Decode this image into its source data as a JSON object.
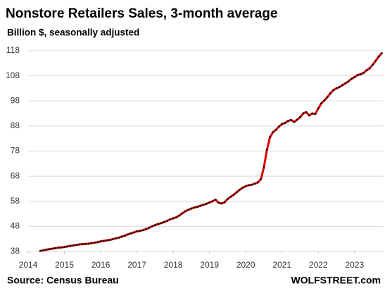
{
  "chart_data": {
    "type": "line",
    "title": "Nonstore Retailers Sales, 3-month average",
    "subtitle": "Billion $, seasonally adjusted",
    "source": "Source: Census Bureau",
    "watermark": "WOLFSTREET.com",
    "xlim": [
      2014,
      2023.8
    ],
    "xticks": [
      2014,
      2015,
      2016,
      2017,
      2018,
      2019,
      2020,
      2021,
      2022,
      2023
    ],
    "ylim": [
      38,
      118
    ],
    "yticks": [
      38,
      48,
      58,
      68,
      78,
      88,
      98,
      108,
      118
    ],
    "grid": true,
    "x": [
      2014.333,
      2014.417,
      2014.5,
      2014.583,
      2014.667,
      2014.75,
      2014.833,
      2014.917,
      2015.0,
      2015.083,
      2015.167,
      2015.25,
      2015.333,
      2015.417,
      2015.5,
      2015.583,
      2015.667,
      2015.75,
      2015.833,
      2015.917,
      2016.0,
      2016.083,
      2016.167,
      2016.25,
      2016.333,
      2016.417,
      2016.5,
      2016.583,
      2016.667,
      2016.75,
      2016.833,
      2016.917,
      2017.0,
      2017.083,
      2017.167,
      2017.25,
      2017.333,
      2017.417,
      2017.5,
      2017.583,
      2017.667,
      2017.75,
      2017.833,
      2017.917,
      2018.0,
      2018.083,
      2018.167,
      2018.25,
      2018.333,
      2018.417,
      2018.5,
      2018.583,
      2018.667,
      2018.75,
      2018.833,
      2018.917,
      2019.0,
      2019.083,
      2019.167,
      2019.25,
      2019.333,
      2019.417,
      2019.5,
      2019.583,
      2019.667,
      2019.75,
      2019.833,
      2019.917,
      2020.0,
      2020.083,
      2020.167,
      2020.25,
      2020.333,
      2020.417,
      2020.5,
      2020.583,
      2020.667,
      2020.75,
      2020.833,
      2020.917,
      2021.0,
      2021.083,
      2021.167,
      2021.25,
      2021.333,
      2021.417,
      2021.5,
      2021.583,
      2021.667,
      2021.75,
      2021.833,
      2021.917,
      2022.0,
      2022.083,
      2022.167,
      2022.25,
      2022.333,
      2022.417,
      2022.5,
      2022.583,
      2022.667,
      2022.75,
      2022.833,
      2022.917,
      2023.0,
      2023.083,
      2023.167,
      2023.25,
      2023.333,
      2023.417,
      2023.5,
      2023.583,
      2023.667,
      2023.75
    ],
    "series": [
      {
        "name": "Nonstore Retailers Sales",
        "color": "#e00000",
        "marker_color": "#111111",
        "values": [
          38.2,
          38.4,
          38.7,
          38.9,
          39.1,
          39.3,
          39.5,
          39.6,
          39.8,
          40.0,
          40.2,
          40.4,
          40.6,
          40.8,
          40.9,
          41.0,
          41.1,
          41.3,
          41.5,
          41.7,
          42.0,
          42.2,
          42.4,
          42.6,
          42.9,
          43.2,
          43.5,
          43.9,
          44.3,
          44.8,
          45.2,
          45.6,
          46.0,
          46.2,
          46.5,
          46.9,
          47.4,
          48.0,
          48.5,
          48.9,
          49.3,
          49.7,
          50.2,
          50.8,
          51.2,
          51.6,
          52.3,
          53.2,
          54.0,
          54.6,
          55.1,
          55.5,
          55.8,
          56.2,
          56.6,
          57.0,
          57.5,
          58.0,
          58.6,
          57.4,
          57.1,
          57.6,
          58.9,
          59.8,
          60.6,
          61.6,
          62.6,
          63.4,
          64.0,
          64.4,
          64.6,
          65.0,
          65.5,
          66.8,
          71.5,
          78.5,
          83.5,
          85.5,
          86.5,
          87.8,
          88.8,
          89.2,
          90.0,
          90.4,
          89.6,
          90.5,
          91.5,
          93.0,
          93.5,
          92.2,
          93.0,
          92.8,
          95.0,
          97.0,
          98.2,
          99.5,
          101.0,
          102.3,
          103.0,
          103.5,
          104.3,
          105.0,
          105.8,
          106.8,
          107.5,
          108.3,
          108.6,
          109.2,
          110.2,
          111.0,
          112.4,
          114.0,
          115.7,
          117.0
        ]
      }
    ]
  }
}
